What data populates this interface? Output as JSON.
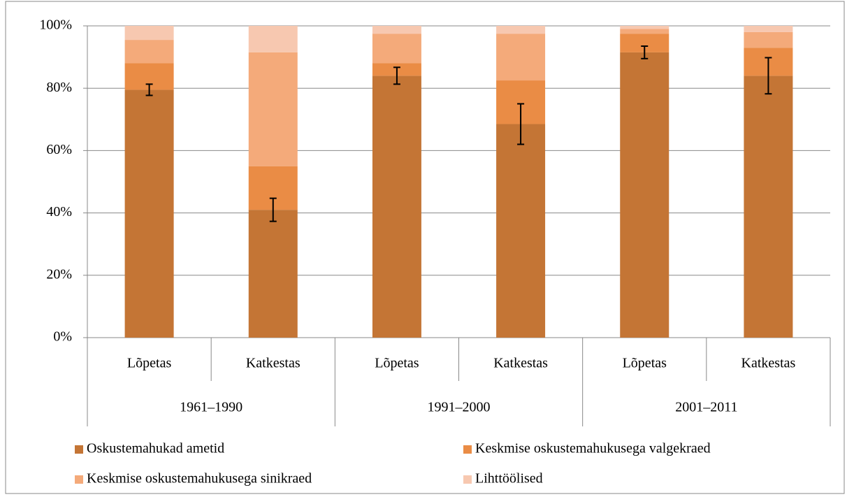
{
  "chart_data": {
    "type": "stacked_bar",
    "categories": [
      "Lõpetas",
      "Katkestas",
      "Lõpetas",
      "Katkestas",
      "Lõpetas",
      "Katkestas"
    ],
    "groups": [
      "1961–1990",
      "1991–2000",
      "2001–2011"
    ],
    "series": [
      {
        "name": "Oskustemahukad ametid",
        "color": "#c47535",
        "values": [
          79.5,
          41,
          84,
          68.5,
          91.5,
          84
        ],
        "errors": [
          1.8,
          3.7,
          2.7,
          6.5,
          2,
          5.8
        ]
      },
      {
        "name": "Keskmise oskustemahukusega valgekraed",
        "color": "#ea8c45",
        "values": [
          8.5,
          14,
          4,
          14,
          6,
          9
        ]
      },
      {
        "name": "Keskmise oskustemahukusega sinikraed",
        "color": "#f4aa7a",
        "values": [
          7.5,
          36.5,
          9.5,
          15,
          1.5,
          5
        ]
      },
      {
        "name": "Lihttöölised",
        "color": "#f7c8b0",
        "values": [
          4.5,
          8.5,
          2.5,
          2.5,
          1,
          2
        ]
      }
    ],
    "ylim": [
      0,
      100
    ],
    "yticks": [
      {
        "value": 0,
        "label": "0%"
      },
      {
        "value": 20,
        "label": "20%"
      },
      {
        "value": 40,
        "label": "40%"
      },
      {
        "value": 60,
        "label": "60%"
      },
      {
        "value": 80,
        "label": "80%"
      },
      {
        "value": 100,
        "label": "100%"
      }
    ],
    "grid": true
  }
}
